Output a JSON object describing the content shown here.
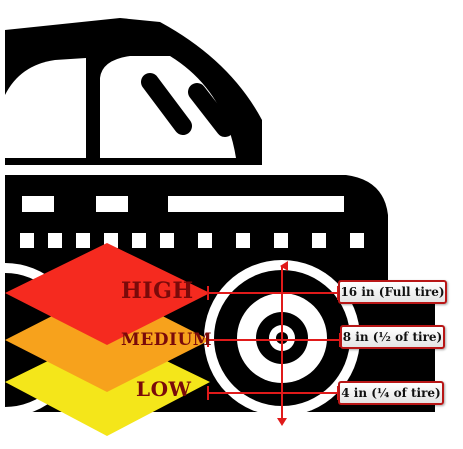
{
  "levels": [
    {
      "name": "HIGH",
      "depth": "16 in (Full tire)",
      "color": "#f52a1f"
    },
    {
      "name": "MEDIUM",
      "depth": "8 in (½ of tire)",
      "color": "#f7a21c"
    },
    {
      "name": "LOW",
      "depth": "4 in (¼ of tire)",
      "color": "#f4e61a"
    }
  ],
  "colors": {
    "car": "#000000",
    "measure_line": "#e01a1a",
    "label_text": "#7a0a0a",
    "box_border": "#b81616"
  },
  "icons": {
    "car": "car-icon",
    "wheel": "wheel-icon"
  }
}
